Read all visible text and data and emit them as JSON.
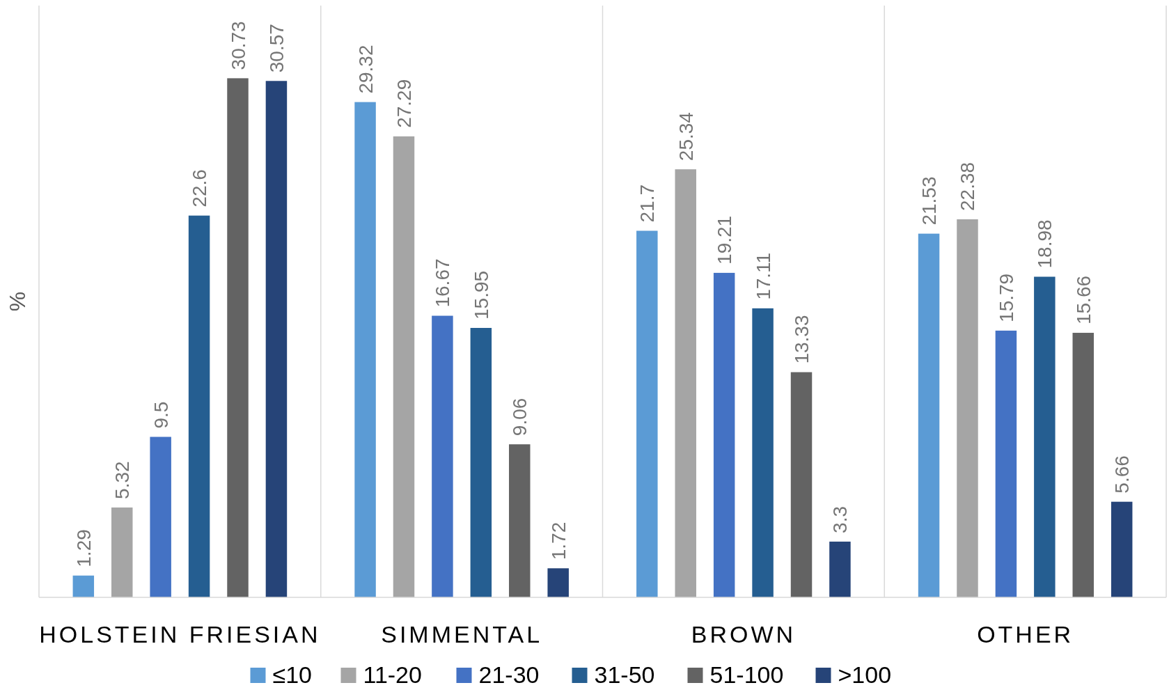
{
  "chart_data": {
    "type": "bar",
    "ylabel": "%",
    "categories": [
      "HOLSTEIN FRIESIAN",
      "SIMMENTAL",
      "BROWN",
      "OTHER"
    ],
    "series": [
      {
        "name": "≤10",
        "color": "#5b9bd5",
        "values": [
          1.29,
          29.32,
          21.7,
          21.53
        ]
      },
      {
        "name": "11-20",
        "color": "#a5a5a5",
        "values": [
          5.32,
          27.29,
          25.34,
          22.38
        ]
      },
      {
        "name": "21-30",
        "color": "#4472c4",
        "values": [
          9.5,
          16.67,
          19.21,
          15.79
        ]
      },
      {
        "name": "31-50",
        "color": "#255e91",
        "values": [
          22.6,
          15.95,
          17.11,
          18.98
        ]
      },
      {
        "name": "51-100",
        "color": "#636363",
        "values": [
          30.73,
          9.06,
          13.33,
          15.66
        ]
      },
      {
        "name": ">100",
        "color": "#264478",
        "values": [
          30.57,
          1.72,
          3.3,
          5.66
        ]
      }
    ],
    "data_labels": true,
    "grid": "x",
    "legend": "bottom",
    "tick_labels": "x"
  }
}
